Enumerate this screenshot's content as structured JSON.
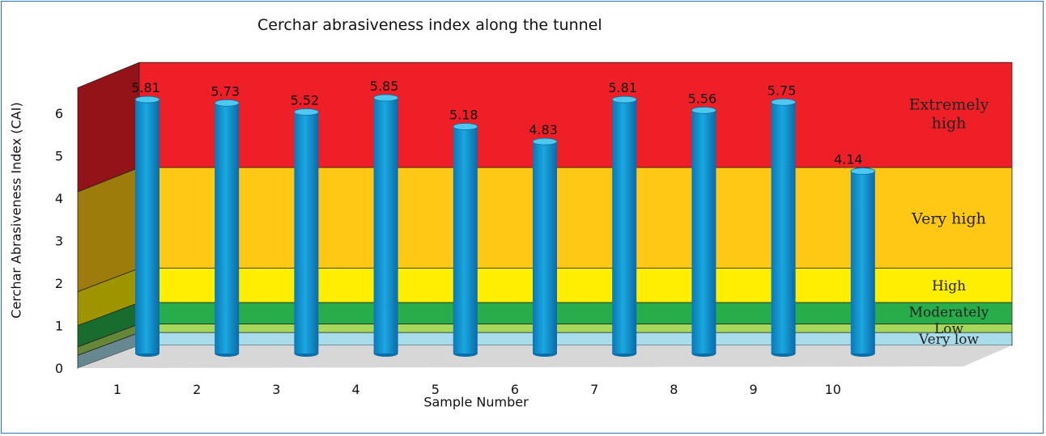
{
  "chart_data": {
    "type": "bar",
    "title": "Cerchar abrasiveness index along the tunnel",
    "xlabel": "Sample Number",
    "ylabel": "Cerchar Abrasiveness Index (CAI)",
    "categories": [
      "1",
      "2",
      "3",
      "4",
      "5",
      "6",
      "7",
      "8",
      "9",
      "10"
    ],
    "values": [
      5.81,
      5.73,
      5.52,
      5.85,
      5.18,
      4.83,
      5.81,
      5.56,
      5.75,
      4.14
    ],
    "data_labels": [
      "5.81",
      "5.73",
      "5.52",
      "5.85",
      "5.18",
      "4.83",
      "5.81",
      "5.56",
      "5.75",
      "4.14"
    ],
    "y_ticks": [
      "0",
      "1",
      "2",
      "3",
      "4",
      "5",
      "6"
    ],
    "ylim": [
      0,
      6.6
    ],
    "bar_color": "#1aa7e0",
    "classes": [
      {
        "label": "Very low",
        "from": 0.0,
        "to": 0.3,
        "color": "#a8dcea"
      },
      {
        "label": "Low",
        "from": 0.3,
        "to": 0.5,
        "color": "#a6d95a"
      },
      {
        "label": "Moderately",
        "from": 0.5,
        "to": 1.0,
        "color": "#27ae4a"
      },
      {
        "label": "High",
        "from": 1.0,
        "to": 1.8,
        "color": "#ffee00"
      },
      {
        "label": "Very high",
        "from": 1.8,
        "to": 4.15,
        "color": "#ffc814"
      },
      {
        "label": "Extremely high",
        "from": 4.15,
        "to": 6.6,
        "color": "#ee1f26"
      }
    ]
  }
}
